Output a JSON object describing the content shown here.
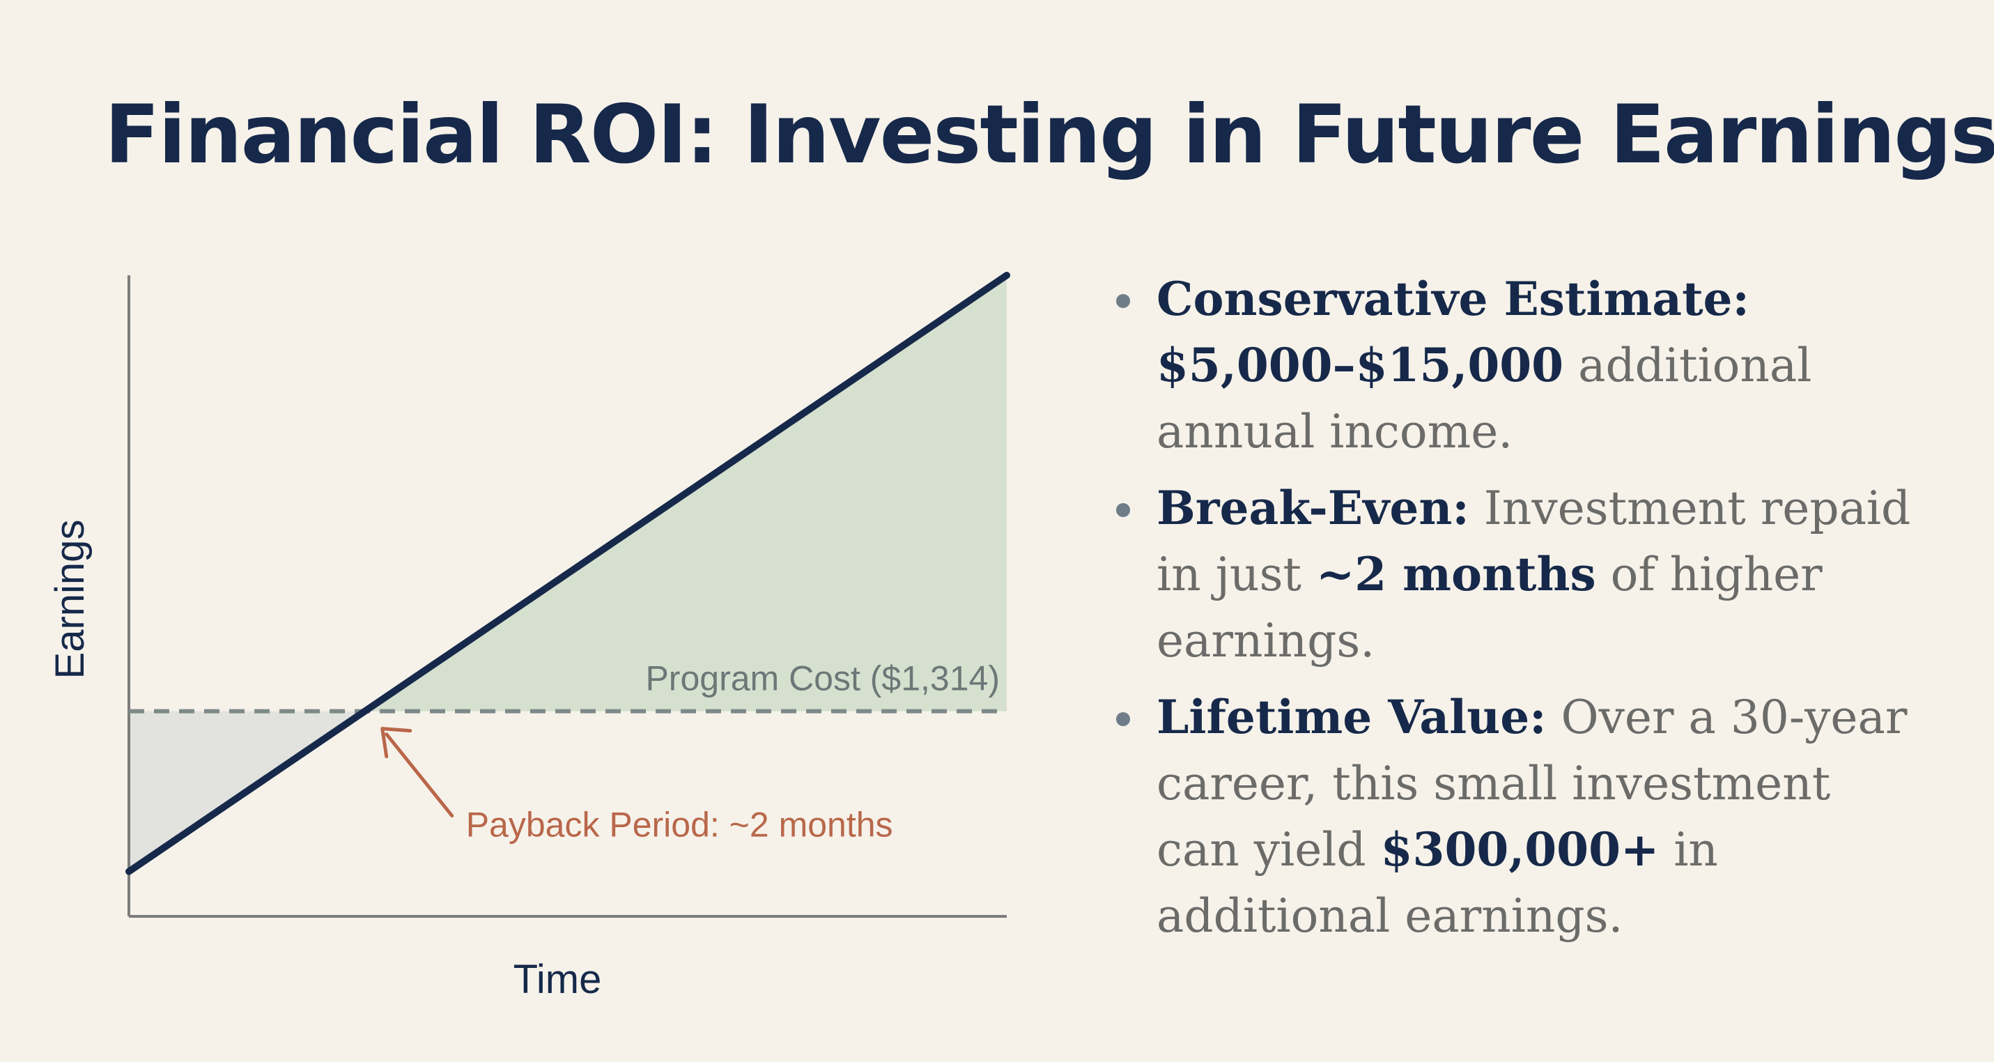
{
  "title": "Financial ROI: Investing in Future Earnings",
  "colors": {
    "background": "#f6f2ea",
    "title": "#16294a",
    "line": "#16294a",
    "gain_fill": "#d6e0cf",
    "loss_fill": "#e2e2df",
    "cost_line": "#7d8a89",
    "annotation": "#b9674a",
    "axis": "#7c7c7c",
    "body_text": "#6b6b69"
  },
  "chart_data": {
    "type": "line",
    "xlabel": "Time",
    "ylabel": "Earnings",
    "series": [
      {
        "x": [
          0,
          1
        ],
        "y": [
          0.07,
          1.0
        ]
      }
    ],
    "reference_line": {
      "label": "Program Cost ($1,314)",
      "y": 0.32
    },
    "annotation": {
      "label": "Payback Period: ~2 months"
    },
    "xlim": [
      0,
      1
    ],
    "ylim": [
      0,
      1
    ],
    "grid": false
  },
  "bullets": [
    {
      "label": "Conservative Estimate:",
      "parts": [
        {
          "text": "$5,000–$15,000",
          "bold": true
        },
        {
          "text": " additional annual income.",
          "bold": false
        }
      ]
    },
    {
      "label": "Break-Even:",
      "parts": [
        {
          "text": " Investment repaid in just ",
          "bold": false
        },
        {
          "text": "~2 months",
          "bold": true
        },
        {
          "text": " of higher earnings.",
          "bold": false
        }
      ]
    },
    {
      "label": "Lifetime Value:",
      "parts": [
        {
          "text": " Over a 30-year career, this small investment can yield ",
          "bold": false
        },
        {
          "text": "$300,000+",
          "bold": true
        },
        {
          "text": " in additional earnings.",
          "bold": false
        }
      ]
    }
  ]
}
